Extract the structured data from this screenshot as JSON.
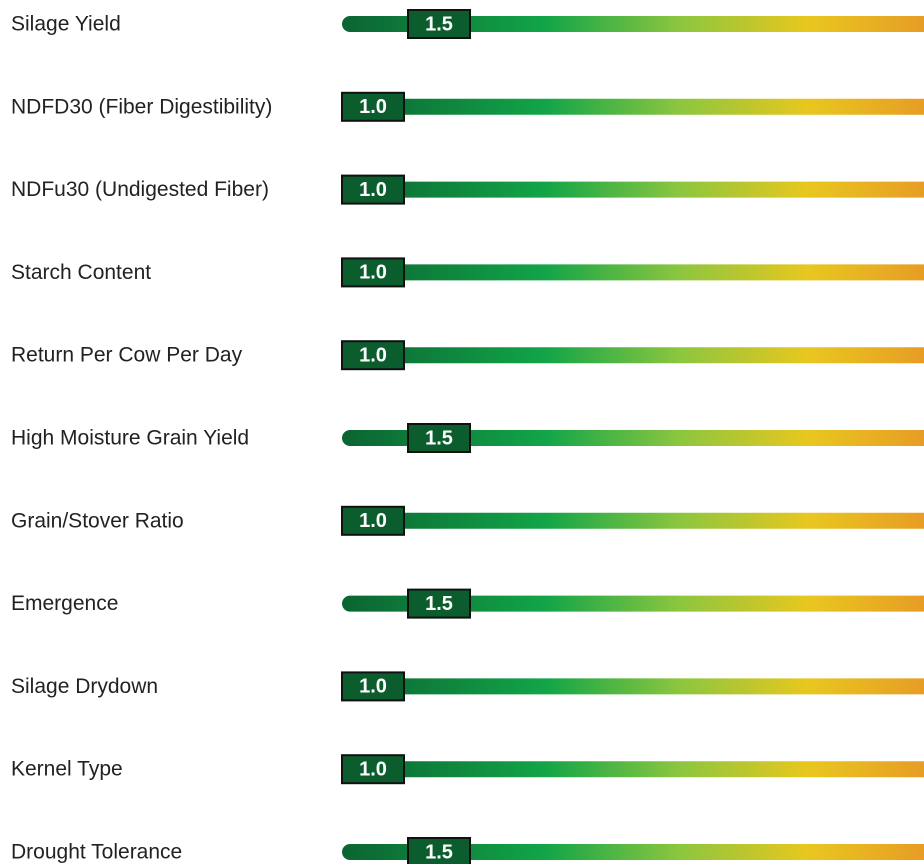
{
  "traits": [
    {
      "label": "Silage Yield",
      "rating": 1.5,
      "rating_label": "1.5"
    },
    {
      "label": "NDFD30 (Fiber Digestibility)",
      "rating": 1,
      "rating_label": "1.0"
    },
    {
      "label": "NDFu30 (Undigested Fiber)",
      "rating": 1,
      "rating_label": "1.0"
    },
    {
      "label": "Starch Content",
      "rating": 1,
      "rating_label": "1.0"
    },
    {
      "label": "Return Per Cow Per Day",
      "rating": 1,
      "rating_label": "1.0"
    },
    {
      "label": "High Moisture Grain Yield",
      "rating": 1.5,
      "rating_label": "1.5"
    },
    {
      "label": "Grain/Stover Ratio",
      "rating": 1,
      "rating_label": "1.0"
    },
    {
      "label": "Emergence",
      "rating": 1.5,
      "rating_label": "1.5"
    },
    {
      "label": "Silage Drydown",
      "rating": 1,
      "rating_label": "1.0"
    },
    {
      "label": "Kernel Type",
      "rating": 1,
      "rating_label": "1.0"
    },
    {
      "label": "Drought Tolerance",
      "rating": 1.5,
      "rating_label": "1.5"
    }
  ]
}
